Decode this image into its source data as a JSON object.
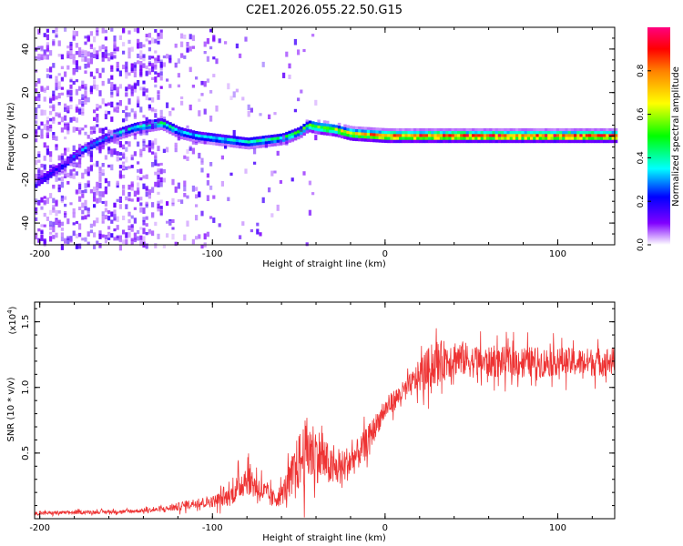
{
  "chart_data": [
    {
      "type": "heatmap",
      "title": "C2E1.2026.055.22.50.G15",
      "xlabel": "Height of straight line (km)",
      "ylabel": "Frequency (Hz)",
      "xlim": [
        -203,
        133
      ],
      "ylim": [
        -50,
        50
      ],
      "xticks": [
        -200,
        -100,
        0,
        100
      ],
      "xtick_labels": [
        "-200",
        "-100",
        "0",
        "100"
      ],
      "yticks": [
        -40,
        -20,
        0,
        20,
        40
      ],
      "ytick_labels": [
        "-40",
        "-20",
        "0",
        "20",
        "40"
      ],
      "colorbar": {
        "label": "Normalized spectral amplitude",
        "range": [
          0,
          1
        ],
        "ticks": [
          0.0,
          0.2,
          0.4,
          0.6,
          0.8
        ],
        "tick_labels": [
          "0.0",
          "0.2",
          "0.4",
          "0.6",
          "0.8"
        ],
        "colormap": [
          "#ffffff",
          "#8000ff",
          "#0000ff",
          "#00ffff",
          "#00ff00",
          "#ffff00",
          "#ff8000",
          "#ff0000",
          "#ff0080"
        ]
      },
      "ridge": {
        "name": "dominant frequency track",
        "x": [
          -203,
          -190,
          -175,
          -160,
          -145,
          -130,
          -120,
          -110,
          -100,
          -90,
          -80,
          -70,
          -60,
          -50,
          -45,
          -40,
          -30,
          -20,
          -10,
          0,
          20,
          50,
          80,
          110,
          133
        ],
        "y": [
          -22,
          -15,
          -6,
          0,
          4,
          6,
          2,
          0,
          -1,
          -2,
          -3,
          -2,
          -1,
          2,
          5,
          4,
          3,
          1,
          0.5,
          0,
          0,
          0,
          0,
          0,
          0
        ],
        "amplitude": [
          0.22,
          0.25,
          0.3,
          0.35,
          0.4,
          0.45,
          0.38,
          0.35,
          0.35,
          0.38,
          0.4,
          0.42,
          0.45,
          0.5,
          0.55,
          0.6,
          0.65,
          0.75,
          0.82,
          0.85,
          0.88,
          0.9,
          0.9,
          0.9,
          0.88
        ]
      }
    },
    {
      "type": "line",
      "xlabel": "Height of straight line (km)",
      "ylabel": "SNR (10 * v/v)",
      "y_multiplier_label": "(x10",
      "y_multiplier_exp": "4",
      "y_multiplier_close": ")",
      "xlim": [
        -203,
        133
      ],
      "ylim": [
        0,
        16500
      ],
      "xticks": [
        -200,
        -100,
        0,
        100
      ],
      "xtick_labels": [
        "-200",
        "-100",
        "0",
        "100"
      ],
      "yticks": [
        5000,
        10000,
        15000
      ],
      "ytick_labels": [
        "0.5",
        "1.0",
        "1.5"
      ],
      "series": [
        {
          "name": "SNR",
          "color": "#ee3333",
          "x": [
            -203,
            -190,
            -170,
            -150,
            -130,
            -120,
            -110,
            -100,
            -90,
            -85,
            -80,
            -75,
            -70,
            -65,
            -60,
            -55,
            -50,
            -45,
            -40,
            -35,
            -30,
            -25,
            -20,
            -15,
            -10,
            -5,
            0,
            5,
            10,
            15,
            20,
            25,
            30,
            35,
            40,
            45,
            50,
            60,
            70,
            80,
            90,
            100,
            110,
            120,
            133
          ],
          "y": [
            400,
            450,
            500,
            550,
            700,
            900,
            1200,
            1300,
            1700,
            2400,
            3200,
            2500,
            2000,
            1500,
            1800,
            3000,
            4300,
            5200,
            5000,
            4400,
            3700,
            3900,
            4400,
            5000,
            6000,
            7200,
            8300,
            9000,
            9600,
            10200,
            10900,
            11400,
            11900,
            12100,
            12300,
            12200,
            12000,
            11900,
            11950,
            12000,
            11900,
            12000,
            11900,
            11950,
            12000
          ],
          "noise_amplitude": [
            150,
            150,
            150,
            150,
            200,
            350,
            400,
            500,
            800,
            1200,
            1500,
            1200,
            1000,
            800,
            900,
            1500,
            2500,
            3000,
            2500,
            2000,
            1500,
            1500,
            1500,
            1300,
            1200,
            1000,
            900,
            900,
            900,
            1000,
            1400,
            1800,
            1800,
            1700,
            1600,
            1500,
            1400,
            1300,
            1300,
            1300,
            1300,
            1200,
            1200,
            1200,
            1200
          ]
        }
      ]
    }
  ]
}
